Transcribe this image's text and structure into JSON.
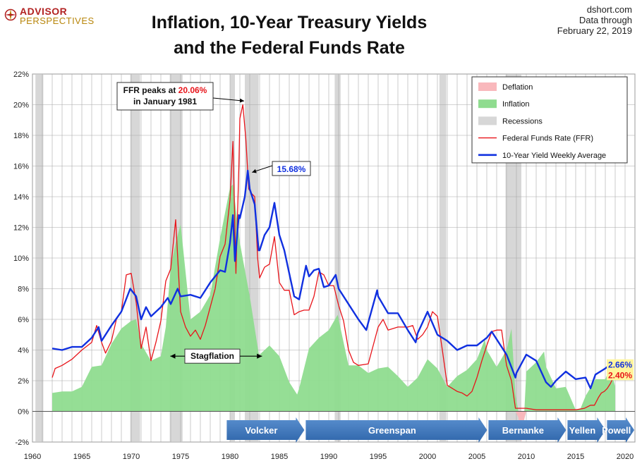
{
  "brand": {
    "line1": "ADVISOR",
    "line2": "PERSPECTIVES"
  },
  "title_line1": "Inflation, 10-Year Treasury Yields",
  "title_line2": "and the Federal Funds Rate",
  "source": {
    "site": "dshort.com",
    "through": "Data through",
    "date": "February 22, 2019"
  },
  "chart_data": {
    "type": "line",
    "title": "Inflation, 10-Year Treasury Yields and the Federal Funds Rate",
    "xlim": [
      1960,
      2021
    ],
    "ylim": [
      -2,
      22
    ],
    "x_ticks": [
      1960,
      1965,
      1970,
      1975,
      1980,
      1985,
      1990,
      1995,
      2000,
      2005,
      2010,
      2015,
      2020
    ],
    "y_ticks": [
      -2,
      0,
      2,
      4,
      6,
      8,
      10,
      12,
      14,
      16,
      18,
      20,
      22
    ],
    "y_tick_suffix": "%",
    "grid": true,
    "legend_position": "top-right",
    "legend": [
      {
        "name": "Deflation",
        "kind": "area",
        "color": "#f9b8bc"
      },
      {
        "name": "Inflation",
        "kind": "area",
        "color": "#8fdc8f"
      },
      {
        "name": "Recessions",
        "kind": "band",
        "color": "#d7d7d7"
      },
      {
        "name": "Federal Funds Rate (FFR)",
        "kind": "line",
        "color": "#e8141a"
      },
      {
        "name": "10-Year Yield Weekly Average",
        "kind": "line",
        "color": "#1030e0"
      }
    ],
    "recessions": [
      [
        1960.3,
        1961.1
      ],
      [
        1969.9,
        1970.9
      ],
      [
        1973.9,
        1975.2
      ],
      [
        1980.0,
        1980.5
      ],
      [
        1981.5,
        1982.9
      ],
      [
        1990.6,
        1991.2
      ],
      [
        2001.2,
        2001.9
      ],
      [
        2007.9,
        2009.5
      ]
    ],
    "series": [
      {
        "name": "Federal Funds Rate (FFR)",
        "color": "#e8141a",
        "x": [
          1962.0,
          1962.3,
          1963.0,
          1964.0,
          1965.0,
          1966.0,
          1966.5,
          1967.0,
          1967.4,
          1968.0,
          1968.5,
          1969.0,
          1969.5,
          1970.0,
          1970.5,
          1971.0,
          1971.5,
          1972.0,
          1972.5,
          1973.0,
          1973.5,
          1974.0,
          1974.5,
          1975.0,
          1975.5,
          1976.0,
          1976.5,
          1977.0,
          1977.5,
          1978.0,
          1978.5,
          1979.0,
          1979.5,
          1980.0,
          1980.3,
          1980.6,
          1980.9,
          1981.0,
          1981.3,
          1981.6,
          1981.9,
          1982.2,
          1982.5,
          1982.8,
          1983.0,
          1983.5,
          1984.0,
          1984.5,
          1985.0,
          1985.5,
          1986.0,
          1986.5,
          1987.0,
          1987.5,
          1988.0,
          1988.5,
          1989.0,
          1989.5,
          1990.0,
          1990.5,
          1991.0,
          1991.5,
          1992.0,
          1992.5,
          1993.0,
          1994.0,
          1994.5,
          1995.0,
          1995.5,
          1996.0,
          1997.0,
          1998.0,
          1998.5,
          1999.0,
          1999.5,
          2000.0,
          2000.5,
          2001.0,
          2001.5,
          2002.0,
          2003.0,
          2003.5,
          2004.0,
          2004.5,
          2005.0,
          2005.5,
          2006.0,
          2006.5,
          2007.0,
          2007.5,
          2008.0,
          2008.5,
          2008.9,
          2009.0,
          2010.0,
          2011.0,
          2012.0,
          2013.0,
          2014.0,
          2015.0,
          2015.9,
          2016.5,
          2016.9,
          2017.3,
          2017.6,
          2017.9,
          2018.2,
          2018.5,
          2018.8,
          2019.1
        ],
        "values": [
          2.2,
          2.8,
          3.0,
          3.4,
          4.0,
          4.5,
          5.6,
          4.5,
          3.8,
          4.6,
          6.0,
          6.5,
          8.9,
          9.0,
          7.1,
          4.1,
          5.5,
          3.3,
          4.5,
          5.9,
          8.5,
          9.3,
          12.5,
          6.5,
          5.5,
          4.9,
          5.3,
          4.7,
          5.6,
          6.8,
          8.0,
          10.1,
          10.9,
          13.8,
          17.6,
          9.0,
          16.0,
          19.1,
          20.0,
          17.8,
          14.5,
          14.2,
          14.0,
          10.0,
          8.7,
          9.4,
          9.6,
          11.4,
          8.4,
          7.9,
          7.9,
          6.3,
          6.5,
          6.6,
          6.6,
          7.5,
          9.1,
          8.9,
          8.2,
          8.2,
          6.9,
          5.9,
          4.0,
          3.2,
          3.0,
          3.1,
          4.3,
          5.5,
          6.0,
          5.3,
          5.5,
          5.5,
          5.6,
          4.7,
          5.0,
          5.5,
          6.5,
          6.2,
          4.0,
          1.7,
          1.3,
          1.2,
          1.0,
          1.3,
          2.2,
          3.3,
          4.3,
          5.2,
          5.3,
          5.3,
          3.0,
          2.0,
          0.2,
          0.2,
          0.2,
          0.1,
          0.1,
          0.1,
          0.1,
          0.1,
          0.2,
          0.4,
          0.4,
          0.9,
          1.2,
          1.3,
          1.5,
          1.8,
          2.2,
          2.4
        ]
      },
      {
        "name": "10-Year Yield Weekly Average",
        "color": "#1030e0",
        "x": [
          1962.0,
          1963.0,
          1964.0,
          1965.0,
          1966.0,
          1966.7,
          1967.0,
          1968.0,
          1969.0,
          1969.9,
          1970.5,
          1971.0,
          1971.5,
          1972.0,
          1973.0,
          1973.7,
          1974.0,
          1974.7,
          1975.0,
          1976.0,
          1977.0,
          1978.0,
          1979.0,
          1979.5,
          1980.0,
          1980.3,
          1980.5,
          1980.9,
          1981.0,
          1981.5,
          1981.8,
          1982.0,
          1982.5,
          1982.9,
          1983.0,
          1983.5,
          1984.0,
          1984.5,
          1985.0,
          1985.5,
          1986.0,
          1986.5,
          1987.0,
          1987.7,
          1988.0,
          1988.5,
          1989.0,
          1989.5,
          1990.0,
          1990.7,
          1991.0,
          1992.0,
          1993.0,
          1993.8,
          1994.0,
          1994.9,
          1995.0,
          1996.0,
          1997.0,
          1998.0,
          1998.8,
          1999.0,
          2000.0,
          2001.0,
          2002.0,
          2003.0,
          2004.0,
          2005.0,
          2006.0,
          2006.5,
          2007.0,
          2008.0,
          2008.9,
          2009.0,
          2010.0,
          2011.0,
          2012.0,
          2012.5,
          2013.0,
          2014.0,
          2015.0,
          2016.0,
          2016.5,
          2017.0,
          2018.0,
          2018.8,
          2019.1
        ],
        "values": [
          4.1,
          4.0,
          4.2,
          4.2,
          4.8,
          5.5,
          4.6,
          5.6,
          6.5,
          8.0,
          7.5,
          6.0,
          6.8,
          6.2,
          6.8,
          7.4,
          7.0,
          8.0,
          7.5,
          7.6,
          7.4,
          8.4,
          9.2,
          9.1,
          11.0,
          12.8,
          9.8,
          12.8,
          12.6,
          14.0,
          15.7,
          14.5,
          13.5,
          10.5,
          10.5,
          11.5,
          12.0,
          13.6,
          11.5,
          10.5,
          9.0,
          7.5,
          7.3,
          9.5,
          8.8,
          9.2,
          9.3,
          8.1,
          8.2,
          8.9,
          8.0,
          7.0,
          6.0,
          5.3,
          5.8,
          7.9,
          7.5,
          6.4,
          6.4,
          5.3,
          4.5,
          5.1,
          6.5,
          5.0,
          4.6,
          4.0,
          4.3,
          4.3,
          4.8,
          5.2,
          4.7,
          3.7,
          2.2,
          2.5,
          3.7,
          3.3,
          1.9,
          1.6,
          2.0,
          2.6,
          2.1,
          2.2,
          1.5,
          2.4,
          2.8,
          3.2,
          2.66
        ]
      },
      {
        "name": "Inflation",
        "color": "#8fdc8f",
        "kind": "area",
        "x": [
          1962.0,
          1963.0,
          1964.0,
          1965.0,
          1966.0,
          1967.0,
          1968.0,
          1969.0,
          1970.0,
          1970.5,
          1971.0,
          1972.0,
          1973.0,
          1973.5,
          1974.0,
          1974.5,
          1975.0,
          1976.0,
          1977.0,
          1978.0,
          1979.0,
          1980.0,
          1980.3,
          1981.0,
          1982.0,
          1982.9,
          1983.0,
          1984.0,
          1985.0,
          1986.0,
          1986.8,
          1987.0,
          1988.0,
          1989.0,
          1990.0,
          1990.9,
          1991.5,
          1992.0,
          1993.0,
          1994.0,
          1995.0,
          1996.0,
          1997.0,
          1998.0,
          1999.0,
          2000.0,
          2001.0,
          2002.0,
          2003.0,
          2004.0,
          2005.0,
          2005.8,
          2006.0,
          2007.0,
          2008.0,
          2008.5,
          2008.9,
          2009.2,
          2009.5,
          2009.8,
          2010.0,
          2011.0,
          2011.8,
          2012.0,
          2013.0,
          2014.0,
          2015.0,
          2015.5,
          2016.0,
          2017.0,
          2018.0,
          2018.5,
          2019.0
        ],
        "values": [
          1.2,
          1.3,
          1.3,
          1.6,
          2.9,
          3.0,
          4.4,
          5.4,
          5.9,
          6.0,
          4.4,
          3.3,
          3.6,
          5.5,
          9.4,
          11.0,
          12.2,
          6.0,
          6.5,
          7.6,
          11.3,
          14.6,
          14.8,
          11.0,
          7.5,
          3.8,
          3.7,
          4.3,
          3.6,
          1.9,
          1.1,
          1.5,
          4.1,
          4.8,
          5.3,
          6.3,
          4.5,
          3.0,
          3.0,
          2.5,
          2.8,
          2.9,
          2.3,
          1.6,
          2.2,
          3.4,
          2.8,
          1.6,
          2.3,
          2.7,
          3.4,
          4.7,
          4.0,
          2.9,
          4.0,
          5.4,
          1.1,
          -0.4,
          -2.0,
          -0.5,
          2.6,
          3.2,
          3.9,
          2.9,
          1.5,
          1.6,
          0.1,
          0.2,
          1.0,
          2.1,
          2.1,
          2.9,
          1.6
        ]
      }
    ],
    "annotations": [
      {
        "id": "ffr_peak",
        "line1_prefix": "FFR peaks at ",
        "line1_value": "20.06%",
        "line2": "in January 1981",
        "x": 1981.0,
        "y": 20.06
      },
      {
        "id": "yield_peak",
        "text": "15.68%",
        "x": 1981.8,
        "y": 15.68
      },
      {
        "id": "stagflation",
        "text": "Stagflation",
        "x_range": [
          1973.6,
          1983.6
        ],
        "y": 3.6
      },
      {
        "id": "latest_yield",
        "text": "2.66%",
        "x": 2019.1,
        "y": 2.66
      },
      {
        "id": "latest_ffr",
        "text": "2.40%",
        "x": 2019.1,
        "y": 2.4
      }
    ],
    "fed_chairs": [
      {
        "name": "Volcker",
        "start": 1979.6,
        "end": 1987.6
      },
      {
        "name": "Greenspan",
        "start": 1987.6,
        "end": 2006.1
      },
      {
        "name": "Bernanke",
        "start": 2006.1,
        "end": 2014.1
      },
      {
        "name": "Yellen",
        "start": 2014.1,
        "end": 2018.1
      },
      {
        "name": "Powell",
        "start": 2018.1,
        "end": 2021.0
      }
    ]
  }
}
